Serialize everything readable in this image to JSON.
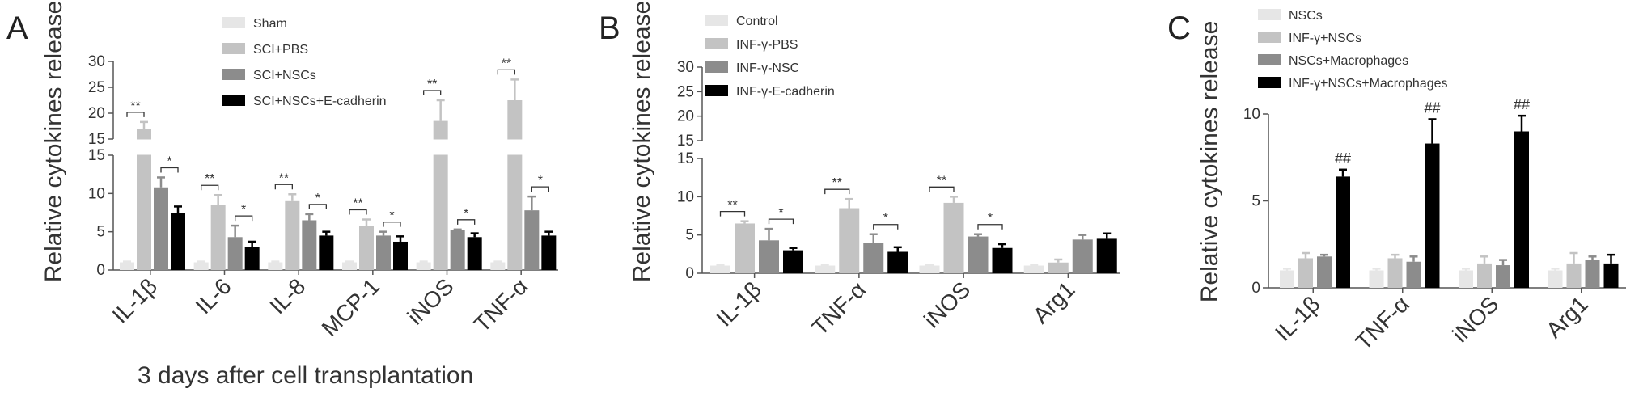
{
  "chart_data": [
    {
      "panel": "A",
      "type": "bar",
      "ylabel": "Relative cytokines release",
      "xlabel": "3 days after cell transplantation",
      "broken_axis": true,
      "lower_ylim": [
        0,
        15
      ],
      "upper_ylim": [
        15,
        30
      ],
      "lower_yticks": [
        "0",
        "5",
        "10",
        "15"
      ],
      "upper_yticks": [
        "15",
        "20",
        "25",
        "30"
      ],
      "categories": [
        "IL-1β",
        "IL-6",
        "IL-8",
        "MCP-1",
        "iNOS",
        "TNF-α"
      ],
      "series": [
        {
          "name": "Sham",
          "color": "#e6e6e6",
          "values": [
            1.0,
            1.0,
            1.0,
            1.0,
            1.0,
            1.0
          ],
          "errors": [
            0.1,
            0.1,
            0.1,
            0.1,
            0.1,
            0.1
          ]
        },
        {
          "name": "SCI+PBS",
          "color": "#c3c3c3",
          "values": [
            17.0,
            8.5,
            9.0,
            5.8,
            18.5,
            22.5
          ],
          "errors": [
            1.3,
            1.3,
            0.9,
            0.8,
            4.0,
            4.0
          ]
        },
        {
          "name": "SCI+NSCs",
          "color": "#8c8c8c",
          "values": [
            10.8,
            4.3,
            6.5,
            4.5,
            5.2,
            7.8
          ],
          "errors": [
            1.3,
            1.5,
            0.8,
            0.5,
            0.1,
            1.8
          ]
        },
        {
          "name": "SCI+NSCs+E-cadherin",
          "color": "#000000",
          "values": [
            7.5,
            3.0,
            4.5,
            3.7,
            4.3,
            4.5
          ],
          "errors": [
            0.8,
            0.7,
            0.5,
            0.7,
            0.5,
            0.5
          ]
        }
      ],
      "annotations": [
        {
          "category": "IL-1β",
          "pair": "Sham-SCI+PBS",
          "text": "**"
        },
        {
          "category": "IL-1β",
          "pair": "SCI+NSCs-SCI+NSCs+E-cadherin",
          "text": "*"
        },
        {
          "category": "IL-6",
          "pair": "Sham-SCI+PBS",
          "text": "**"
        },
        {
          "category": "IL-6",
          "pair": "SCI+NSCs-SCI+NSCs+E-cadherin",
          "text": "*"
        },
        {
          "category": "IL-8",
          "pair": "Sham-SCI+PBS",
          "text": "**"
        },
        {
          "category": "IL-8",
          "pair": "SCI+NSCs-SCI+NSCs+E-cadherin",
          "text": "*"
        },
        {
          "category": "MCP-1",
          "pair": "Sham-SCI+PBS",
          "text": "**"
        },
        {
          "category": "MCP-1",
          "pair": "SCI+NSCs-SCI+NSCs+E-cadherin",
          "text": "*"
        },
        {
          "category": "iNOS",
          "pair": "Sham-SCI+PBS",
          "text": "**"
        },
        {
          "category": "iNOS",
          "pair": "SCI+NSCs-SCI+NSCs+E-cadherin",
          "text": "*"
        },
        {
          "category": "TNF-α",
          "pair": "Sham-SCI+PBS",
          "text": "**"
        },
        {
          "category": "TNF-α",
          "pair": "SCI+NSCs-SCI+NSCs+E-cadherin",
          "text": "*"
        }
      ]
    },
    {
      "panel": "B",
      "type": "bar",
      "ylabel": "Relative cytokines release",
      "xlabel": "",
      "broken_axis": true,
      "lower_ylim": [
        0,
        15
      ],
      "upper_ylim": [
        15,
        30
      ],
      "lower_yticks": [
        "0",
        "5",
        "10",
        "15"
      ],
      "upper_yticks": [
        "15",
        "20",
        "25",
        "30"
      ],
      "categories": [
        "IL-1β",
        "TNF-α",
        "iNOS",
        "Arg1"
      ],
      "series": [
        {
          "name": "Control",
          "color": "#e6e6e6",
          "values": [
            1.0,
            1.0,
            1.0,
            1.0
          ],
          "errors": [
            0.1,
            0.1,
            0.1,
            0.1
          ]
        },
        {
          "name": "INF-γ-PBS",
          "color": "#c3c3c3",
          "values": [
            6.5,
            8.5,
            9.2,
            1.4
          ],
          "errors": [
            0.3,
            1.2,
            0.8,
            0.4
          ]
        },
        {
          "name": "INF-γ-NSC",
          "color": "#8c8c8c",
          "values": [
            4.3,
            4.0,
            4.8,
            4.4
          ],
          "errors": [
            1.5,
            1.1,
            0.3,
            0.6
          ]
        },
        {
          "name": "INF-γ-E-cadherin",
          "color": "#000000",
          "values": [
            3.0,
            2.8,
            3.3,
            4.5
          ],
          "errors": [
            0.3,
            0.6,
            0.5,
            0.7
          ]
        }
      ],
      "annotations": [
        {
          "category": "IL-1β",
          "pair": "Control-INF-γ-PBS",
          "text": "**"
        },
        {
          "category": "IL-1β",
          "pair": "INF-γ-NSC-INF-γ-E-cadherin",
          "text": "*"
        },
        {
          "category": "TNF-α",
          "pair": "Control-INF-γ-PBS",
          "text": "**"
        },
        {
          "category": "TNF-α",
          "pair": "INF-γ-NSC-INF-γ-E-cadherin",
          "text": "*"
        },
        {
          "category": "iNOS",
          "pair": "Control-INF-γ-PBS",
          "text": "**"
        },
        {
          "category": "iNOS",
          "pair": "INF-γ-NSC-INF-γ-E-cadherin",
          "text": "*"
        }
      ]
    },
    {
      "panel": "C",
      "type": "bar",
      "ylabel": "Relative cytokines release",
      "xlabel": "",
      "broken_axis": false,
      "ylim": [
        0,
        10
      ],
      "yticks": [
        "0",
        "5",
        "10"
      ],
      "categories": [
        "IL-1β",
        "TNF-α",
        "iNOS",
        "Arg1"
      ],
      "series": [
        {
          "name": "NSCs",
          "color": "#e6e6e6",
          "values": [
            1.0,
            1.0,
            1.0,
            1.0
          ],
          "errors": [
            0.1,
            0.1,
            0.1,
            0.1
          ]
        },
        {
          "name": "INF-γ+NSCs",
          "color": "#c3c3c3",
          "values": [
            1.7,
            1.7,
            1.4,
            1.4
          ],
          "errors": [
            0.3,
            0.2,
            0.4,
            0.6
          ]
        },
        {
          "name": "NSCs+Macrophages",
          "color": "#8c8c8c",
          "values": [
            1.8,
            1.5,
            1.3,
            1.6
          ],
          "errors": [
            0.1,
            0.3,
            0.3,
            0.2
          ]
        },
        {
          "name": "INF-γ+NSCs+Macrophages",
          "color": "#000000",
          "values": [
            6.4,
            8.3,
            9.0,
            1.4
          ],
          "errors": [
            0.4,
            1.4,
            0.9,
            0.5
          ]
        }
      ],
      "annotations": [
        {
          "category": "IL-1β",
          "series": "INF-γ+NSCs+Macrophages",
          "text": "##"
        },
        {
          "category": "TNF-α",
          "series": "INF-γ+NSCs+Macrophages",
          "text": "##"
        },
        {
          "category": "iNOS",
          "series": "INF-γ+NSCs+Macrophages",
          "text": "##"
        }
      ]
    }
  ],
  "panel_labels": [
    "A",
    "B",
    "C"
  ]
}
